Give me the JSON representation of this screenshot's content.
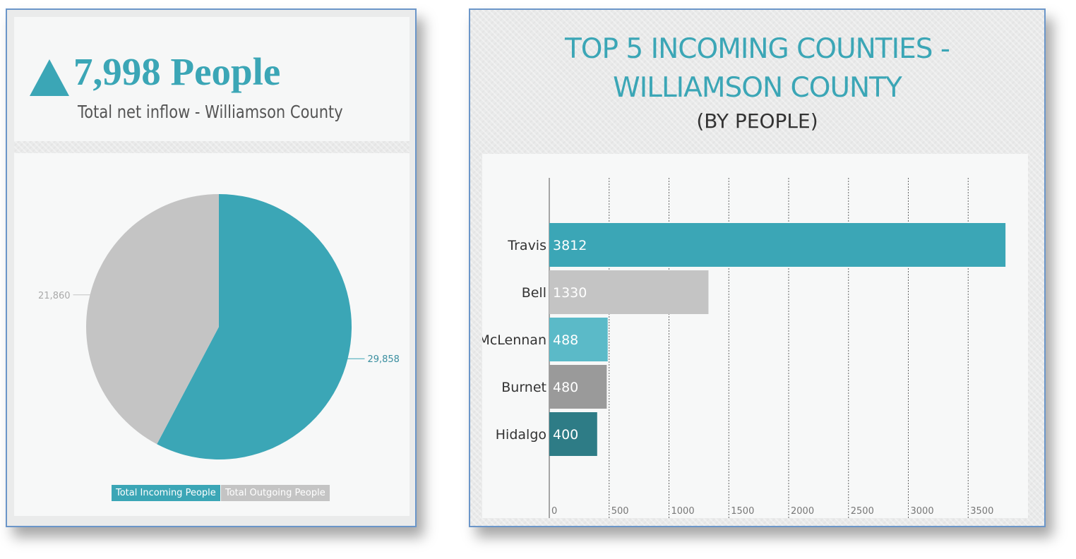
{
  "kpi": {
    "value": "7,998 People",
    "label": "Total net inflow - Williamson County"
  },
  "chart_data": [
    {
      "type": "pie",
      "labels": [
        "Total Incoming People",
        "Total Outgoing People"
      ],
      "values": [
        29858,
        21860
      ],
      "value_labels": [
        "29,858",
        "21,860"
      ],
      "colors": [
        "#3ba6b6",
        "#c4c4c4"
      ],
      "legend": "bottom-center"
    },
    {
      "type": "bar",
      "orientation": "horizontal",
      "title": "TOP 5 INCOMING COUNTIES -",
      "title_line2": "WILLIAMSON COUNTY",
      "subtitle": "(BY PEOPLE)",
      "categories": [
        "Travis",
        "Bell",
        "McLennan",
        "Burnet",
        "Hidalgo"
      ],
      "values": [
        3812,
        1330,
        488,
        480,
        400
      ],
      "colors": [
        "#3ba6b6",
        "#c4c4c4",
        "#5bbac8",
        "#9a9a9a",
        "#2e7c86"
      ],
      "xlim": [
        0,
        4000
      ],
      "xticks": [
        0,
        500,
        1000,
        1500,
        2000,
        2500,
        3000,
        3500
      ],
      "grid": "vertical-dotted"
    }
  ]
}
